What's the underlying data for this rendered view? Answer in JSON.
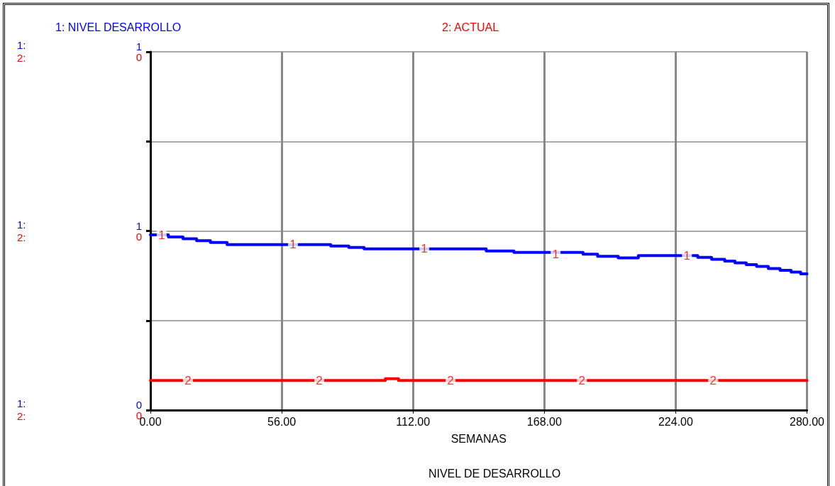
{
  "chart_data": {
    "type": "step",
    "title": "NIVEL DE DESARROLLO",
    "xlabel": "SEMANAS",
    "xlim": [
      0,
      280
    ],
    "xticks": [
      {
        "value": 0,
        "label": "0.00"
      },
      {
        "value": 56,
        "label": "56.00"
      },
      {
        "value": 112,
        "label": "112.00"
      },
      {
        "value": 168,
        "label": "168.00"
      },
      {
        "value": 224,
        "label": "224.00"
      },
      {
        "value": 280,
        "label": "280.00"
      }
    ],
    "ylim": [
      0,
      1
    ],
    "yticks": [
      0,
      {
        "value": 0.25,
        "label": null
      },
      {
        "value": 0.5,
        "label": "1"
      },
      {
        "value": 0.75,
        "label": null
      },
      1
    ],
    "y2lim": [
      0,
      0.4
    ],
    "y2ticks": [
      0,
      {
        "value": 0.1,
        "label": null
      },
      {
        "value": 0.2,
        "label": "0"
      },
      {
        "value": 0.3,
        "label": null
      },
      {
        "value": 0.4,
        "label": "0"
      }
    ],
    "grid": true,
    "marker": "none",
    "line_style": "solid",
    "annotations": [
      "1:",
      "2:",
      "1:",
      "2:",
      "1:",
      "2:",
      {
        "text": "1",
        "x": 4.8,
        "y": 0.489
      },
      {
        "text": "1",
        "x": 60.8,
        "y": 0.462
      },
      {
        "text": "1",
        "x": 116.8,
        "y": 0.45
      },
      {
        "text": "1",
        "x": 172.8,
        "y": 0.435
      },
      {
        "text": "1",
        "x": 228.8,
        "y": 0.431
      },
      {
        "text": "2",
        "x": 16,
        "y": 0.082
      },
      {
        "text": "2",
        "x": 72,
        "y": 0.082
      },
      {
        "text": "2",
        "x": 128,
        "y": 0.082
      },
      {
        "text": "2",
        "x": 184,
        "y": 0.082
      },
      {
        "text": "2",
        "x": 240,
        "y": 0.082
      }
    ],
    "series": [
      {
        "name": "1: NIVEL DESARROLLO",
        "color": "#0000ff",
        "x": [
          0,
          7.7,
          13.9,
          19.7,
          25.6,
          32.7,
          76.9,
          84.6,
          91.1,
          143.2,
          155.0,
          184.5,
          190.7,
          199.5,
          208.1,
          233.4,
          239.3,
          244.9,
          249.3,
          254.1,
          258.5,
          263.5,
          268.5,
          273.2,
          277.3,
          280
        ],
        "values": [
          0.489,
          0.483,
          0.478,
          0.473,
          0.468,
          0.462,
          0.458,
          0.454,
          0.45,
          0.444,
          0.44,
          0.435,
          0.429,
          0.425,
          0.431,
          0.426,
          0.421,
          0.416,
          0.411,
          0.406,
          0.401,
          0.395,
          0.39,
          0.385,
          0.38,
          0.38
        ]
      },
      {
        "name": "2: ACTUAL",
        "color": "#ff0000",
        "axis": "y2",
        "x": [
          0,
          100.2,
          105.8,
          280
        ],
        "values": [
          0.033,
          0.035,
          0.033,
          0.033
        ]
      }
    ]
  }
}
